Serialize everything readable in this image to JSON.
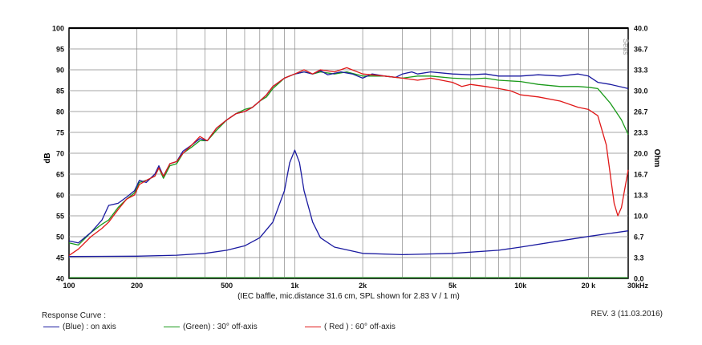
{
  "chart_data": {
    "type": "line",
    "ylabel_left": "dB",
    "ylabel_right": "Ohm",
    "xlabel": "(IEC baffle, mic.distance 31.6 cm, SPL shown for 2.83 V / 1 m)",
    "watermark": "Seas",
    "x_scale": "log",
    "xlim": [
      100,
      30000
    ],
    "ylim": [
      40,
      100
    ],
    "ylim_right": [
      0,
      40
    ],
    "x_ticks": [
      {
        "v": 100,
        "label": "100"
      },
      {
        "v": 200,
        "label": "200"
      },
      {
        "v": 500,
        "label": "500"
      },
      {
        "v": 1000,
        "label": "1k"
      },
      {
        "v": 2000,
        "label": "2k"
      },
      {
        "v": 5000,
        "label": "5k"
      },
      {
        "v": 10000,
        "label": "10k"
      },
      {
        "v": 20000,
        "label": "20 k"
      },
      {
        "v": 30000,
        "label": "30kHz"
      }
    ],
    "y_ticks_left": [
      "40",
      "45",
      "50",
      "55",
      "60",
      "65",
      "70",
      "75",
      "80",
      "85",
      "90",
      "95",
      "100"
    ],
    "y_ticks_right": [
      "0.0",
      "3.3",
      "6.7",
      "10.0",
      "13.3",
      "16.7",
      "20.0",
      "23.3",
      "26.7",
      "30.0",
      "33.3",
      "36.7",
      "40.0"
    ],
    "grid": true,
    "series": [
      {
        "name": "(Blue) : on axis",
        "color": "#1a1aa0",
        "axis": "left",
        "points": [
          [
            100,
            49
          ],
          [
            110,
            48.5
          ],
          [
            125,
            51
          ],
          [
            140,
            54
          ],
          [
            150,
            57.5
          ],
          [
            165,
            58
          ],
          [
            180,
            59.5
          ],
          [
            195,
            61
          ],
          [
            205,
            63.5
          ],
          [
            220,
            63
          ],
          [
            240,
            65
          ],
          [
            250,
            67
          ],
          [
            262,
            64.5
          ],
          [
            280,
            67.5
          ],
          [
            300,
            68
          ],
          [
            320,
            70.5
          ],
          [
            350,
            72
          ],
          [
            380,
            73.5
          ],
          [
            410,
            73
          ],
          [
            450,
            76
          ],
          [
            500,
            78
          ],
          [
            550,
            79.5
          ],
          [
            600,
            80
          ],
          [
            650,
            81
          ],
          [
            700,
            82.5
          ],
          [
            750,
            84
          ],
          [
            800,
            86
          ],
          [
            900,
            88
          ],
          [
            1000,
            89
          ],
          [
            1100,
            89.5
          ],
          [
            1200,
            89
          ],
          [
            1300,
            89.8
          ],
          [
            1400,
            88.8
          ],
          [
            1600,
            89.5
          ],
          [
            1800,
            89
          ],
          [
            2000,
            88
          ],
          [
            2200,
            89
          ],
          [
            2500,
            88.5
          ],
          [
            2800,
            88.2
          ],
          [
            3000,
            89
          ],
          [
            3300,
            89.5
          ],
          [
            3500,
            89
          ],
          [
            4000,
            89.5
          ],
          [
            5000,
            89
          ],
          [
            6000,
            88.8
          ],
          [
            7000,
            89
          ],
          [
            8000,
            88.5
          ],
          [
            10000,
            88.5
          ],
          [
            12000,
            88.8
          ],
          [
            15000,
            88.5
          ],
          [
            18000,
            89
          ],
          [
            20000,
            88.5
          ],
          [
            22000,
            87
          ],
          [
            25000,
            86.5
          ],
          [
            30000,
            85.5
          ]
        ]
      },
      {
        "name": "(Green) : 30° off-axis",
        "color": "#1a9a1a",
        "axis": "left",
        "points": [
          [
            100,
            48.5
          ],
          [
            110,
            48
          ],
          [
            125,
            51
          ],
          [
            140,
            53
          ],
          [
            150,
            54
          ],
          [
            165,
            57
          ],
          [
            180,
            59
          ],
          [
            195,
            60.5
          ],
          [
            205,
            63
          ],
          [
            220,
            63.5
          ],
          [
            240,
            64.5
          ],
          [
            250,
            66.5
          ],
          [
            262,
            64
          ],
          [
            280,
            67
          ],
          [
            300,
            67.5
          ],
          [
            320,
            70
          ],
          [
            350,
            71.5
          ],
          [
            380,
            73
          ],
          [
            410,
            73
          ],
          [
            450,
            75.5
          ],
          [
            500,
            78
          ],
          [
            550,
            79.5
          ],
          [
            600,
            80.5
          ],
          [
            650,
            81
          ],
          [
            700,
            82.5
          ],
          [
            750,
            83.5
          ],
          [
            800,
            85.5
          ],
          [
            900,
            88
          ],
          [
            1000,
            89
          ],
          [
            1100,
            89.5
          ],
          [
            1200,
            89
          ],
          [
            1300,
            89.5
          ],
          [
            1500,
            89
          ],
          [
            1700,
            89.5
          ],
          [
            2000,
            88.5
          ],
          [
            2500,
            88.5
          ],
          [
            3000,
            88
          ],
          [
            3500,
            88.5
          ],
          [
            4000,
            88.5
          ],
          [
            5000,
            88
          ],
          [
            6000,
            87.8
          ],
          [
            7000,
            88
          ],
          [
            8000,
            87.5
          ],
          [
            10000,
            87.2
          ],
          [
            12000,
            86.5
          ],
          [
            15000,
            86
          ],
          [
            18000,
            86
          ],
          [
            20000,
            85.8
          ],
          [
            22000,
            85.5
          ],
          [
            25000,
            82
          ],
          [
            28000,
            78
          ],
          [
            30000,
            74.5
          ]
        ]
      },
      {
        "name": "( Red ) : 60° off-axis",
        "color": "#e01818",
        "axis": "left",
        "points": [
          [
            100,
            45.5
          ],
          [
            110,
            47
          ],
          [
            125,
            50
          ],
          [
            140,
            52
          ],
          [
            150,
            53.5
          ],
          [
            165,
            56.5
          ],
          [
            180,
            59
          ],
          [
            195,
            60
          ],
          [
            205,
            62.5
          ],
          [
            220,
            63.5
          ],
          [
            240,
            64.5
          ],
          [
            250,
            66.5
          ],
          [
            262,
            64.5
          ],
          [
            280,
            67.5
          ],
          [
            300,
            68
          ],
          [
            320,
            70
          ],
          [
            350,
            72
          ],
          [
            380,
            74
          ],
          [
            410,
            73
          ],
          [
            450,
            76
          ],
          [
            500,
            78
          ],
          [
            550,
            79.5
          ],
          [
            600,
            80
          ],
          [
            650,
            81
          ],
          [
            700,
            82.5
          ],
          [
            750,
            84
          ],
          [
            800,
            86
          ],
          [
            900,
            88
          ],
          [
            1000,
            89
          ],
          [
            1100,
            90
          ],
          [
            1200,
            89
          ],
          [
            1300,
            90
          ],
          [
            1500,
            89.5
          ],
          [
            1700,
            90.5
          ],
          [
            2000,
            89
          ],
          [
            2500,
            88.5
          ],
          [
            3000,
            88
          ],
          [
            3500,
            87.5
          ],
          [
            4000,
            88
          ],
          [
            5000,
            87
          ],
          [
            5500,
            86
          ],
          [
            6000,
            86.5
          ],
          [
            7000,
            86
          ],
          [
            8000,
            85.5
          ],
          [
            9000,
            85
          ],
          [
            10000,
            84
          ],
          [
            12000,
            83.5
          ],
          [
            15000,
            82.5
          ],
          [
            18000,
            81
          ],
          [
            20000,
            80.5
          ],
          [
            22000,
            79
          ],
          [
            24000,
            72
          ],
          [
            26000,
            58
          ],
          [
            27000,
            55
          ],
          [
            28000,
            57
          ],
          [
            30000,
            66
          ]
        ]
      },
      {
        "name": "impedance",
        "color": "#1a1aa0",
        "axis": "right",
        "points": [
          [
            100,
            3.5
          ],
          [
            200,
            3.55
          ],
          [
            300,
            3.7
          ],
          [
            400,
            4
          ],
          [
            500,
            4.5
          ],
          [
            600,
            5.2
          ],
          [
            700,
            6.5
          ],
          [
            800,
            9
          ],
          [
            900,
            14
          ],
          [
            950,
            18.5
          ],
          [
            1000,
            20.5
          ],
          [
            1050,
            18.5
          ],
          [
            1100,
            14
          ],
          [
            1200,
            9
          ],
          [
            1300,
            6.5
          ],
          [
            1500,
            5
          ],
          [
            2000,
            4
          ],
          [
            3000,
            3.8
          ],
          [
            5000,
            4
          ],
          [
            8000,
            4.5
          ],
          [
            10000,
            5
          ],
          [
            15000,
            6
          ],
          [
            20000,
            6.7
          ],
          [
            30000,
            7.6
          ]
        ]
      }
    ]
  },
  "legend": {
    "title": "Response Curve :",
    "blue": "(Blue) : on axis",
    "green": "(Green) : 30° off-axis",
    "red": "( Red ) : 60° off-axis"
  },
  "revision": "REV. 3 (11.03.2016)"
}
